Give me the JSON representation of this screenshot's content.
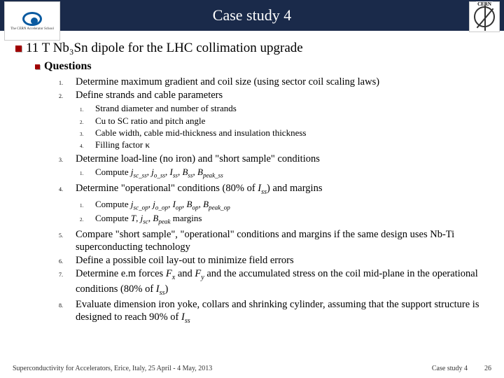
{
  "header": {
    "title": "Case study 4",
    "logo_left_sub": "The CERN Accelerator School",
    "logo_right_label": "CERN"
  },
  "main": {
    "heading": "11 T Nb₃Sn dipole for the LHC collimation upgrade",
    "subheading": "Questions",
    "items": [
      {
        "n": "1.",
        "text": "Determine maximum gradient and coil size (using sector coil scaling laws)"
      },
      {
        "n": "2.",
        "text": "Define strands and cable parameters",
        "sub": [
          {
            "n": "1.",
            "text": "Strand diameter and number of strands"
          },
          {
            "n": "2.",
            "text": "Cu to SC ratio and pitch angle"
          },
          {
            "n": "3.",
            "text": "Cable width, cable mid-thickness and insulation thickness"
          },
          {
            "n": "4.",
            "text": "Filling factor κ"
          }
        ]
      },
      {
        "n": "3.",
        "text": "Determine load-line (no iron) and \"short sample\" conditions",
        "sub": [
          {
            "n": "1.",
            "html": "Compute <span class='it'>j<sub>sc_ss</sub></span>, <span class='it'>j<sub>o_ss</sub></span>, <span class='it'>I<sub>ss</sub></span>, <span class='it'>B<sub>ss</sub></span>, <span class='it'>B<sub>peak_ss</sub></span>"
          }
        ]
      },
      {
        "n": "4.",
        "html": "Determine \"operational\" conditions (80% of <span class='it'>I<sub>ss</sub></span>) and margins",
        "sub": [
          {
            "n": "1.",
            "html": "Compute <span class='it'>j<sub>sc_op</sub></span>, <span class='it'>j<sub>o_op</sub></span>, <span class='it'>I<sub>op</sub></span>, <span class='it'>B<sub>op</sub></span>, <span class='it'>B<sub>peak_op</sub></span>"
          },
          {
            "n": "2.",
            "html": "Compute <span class='it'>T</span>, <span class='it'>j<sub>sc</sub></span>, <span class='it'>B<sub>peak</sub></span> margins"
          }
        ]
      },
      {
        "n": "5.",
        "text": "Compare \"short sample\", \"operational\" conditions and margins if the same design uses Nb-Ti superconducting technology"
      },
      {
        "n": "6.",
        "text": "Define a possible coil lay-out to minimize field errors"
      },
      {
        "n": "7.",
        "html": "Determine e.m forces <span class='it'>F<sub>x</sub></span> and <span class='it'>F<sub>y</sub></span> and the accumulated stress on the coil mid-plane in the operational conditions (80% of <span class='it'>I<sub>ss</sub></span>)"
      },
      {
        "n": "8.",
        "html": "Evaluate dimension iron yoke, collars and shrinking cylinder, assuming that the support structure is designed to reach 90% of <span class='it'>I<sub>ss</sub></span>"
      }
    ]
  },
  "footer": {
    "left": "Superconductivity for Accelerators, Erice, Italy, 25 April - 4 May, 2013",
    "right_label": "Case study 4",
    "page": "26"
  },
  "colors": {
    "header_bg": "#1a2a4a",
    "bullet": "#a00000",
    "bullet_shadow": "#b0b0b0"
  }
}
